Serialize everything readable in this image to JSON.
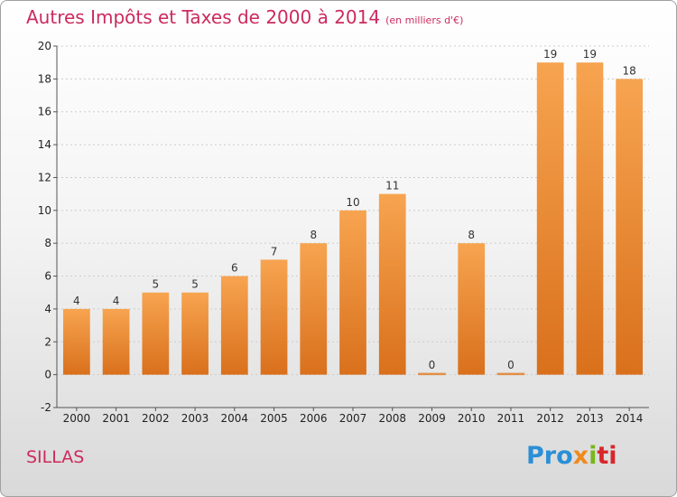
{
  "title": "Autres Impôts et Taxes de 2000 à 2014",
  "subtitle": "(en milliers d'€)",
  "location": "SILLAS",
  "logo": {
    "p1": "Pro",
    "p2": "x",
    "p3": "i",
    "p4": "ti"
  },
  "colors": {
    "title": "#cc2a5e",
    "bar_top": "#f7a450",
    "bar_bottom": "#d9701c",
    "grid": "#cccccc"
  },
  "chart_data": {
    "type": "bar",
    "categories": [
      "2000",
      "2001",
      "2002",
      "2003",
      "2004",
      "2005",
      "2006",
      "2007",
      "2008",
      "2009",
      "2010",
      "2011",
      "2012",
      "2013",
      "2014"
    ],
    "values": [
      4,
      4,
      5,
      5,
      6,
      7,
      8,
      10,
      11,
      0,
      8,
      0,
      19,
      19,
      18
    ],
    "value_labels": [
      "4",
      "4",
      "5",
      "5",
      "6",
      "7",
      "8",
      "10",
      "11",
      "0",
      "8",
      "0",
      "19",
      "19",
      "18"
    ],
    "ylim": [
      -2,
      20
    ],
    "yticks": [
      "-2",
      "0",
      "2",
      "4",
      "6",
      "8",
      "10",
      "12",
      "14",
      "16",
      "18",
      "20"
    ],
    "grid": true,
    "legend": "none"
  }
}
